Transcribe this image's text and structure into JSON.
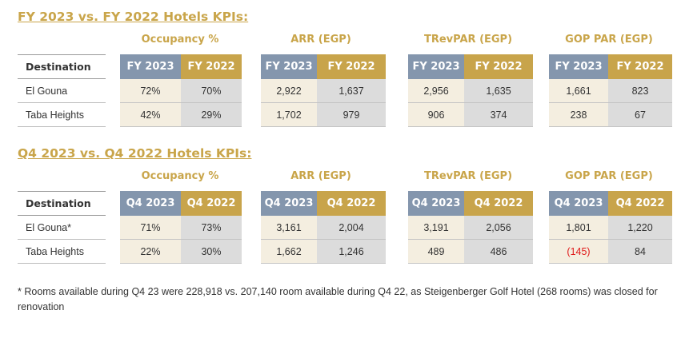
{
  "fy": {
    "title": "FY 2023 vs. FY 2022 Hotels KPIs:",
    "dest_header": "Destination",
    "metrics": [
      {
        "name": "Occupancy %",
        "cur": "FY 2023",
        "prev": "FY 2022",
        "rows": [
          [
            "72%",
            "70%"
          ],
          [
            "42%",
            "29%"
          ]
        ]
      },
      {
        "name": "ARR (EGP)",
        "cur": "FY 2023",
        "prev": "FY 2022",
        "rows": [
          [
            "2,922",
            "1,637"
          ],
          [
            "1,702",
            "979"
          ]
        ]
      },
      {
        "name": "TRevPAR (EGP)",
        "cur": "FY 2023",
        "prev": "FY 2022",
        "rows": [
          [
            "2,956",
            "1,635"
          ],
          [
            "906",
            "374"
          ]
        ]
      },
      {
        "name": "GOP PAR (EGP)",
        "cur": "FY 2023",
        "prev": "FY 2022",
        "rows": [
          [
            "1,661",
            "823"
          ],
          [
            "238",
            "67"
          ]
        ]
      }
    ],
    "destinations": [
      "El Gouna",
      "Taba Heights"
    ]
  },
  "q4": {
    "title": "Q4 2023 vs. Q4 2022 Hotels KPIs:",
    "dest_header": "Destination",
    "metrics": [
      {
        "name": "Occupancy %",
        "cur": "Q4 2023",
        "prev": "Q4 2022",
        "rows": [
          [
            "71%",
            "73%"
          ],
          [
            "22%",
            "30%"
          ]
        ]
      },
      {
        "name": "ARR (EGP)",
        "cur": "Q4 2023",
        "prev": "Q4 2022",
        "rows": [
          [
            "3,161",
            "2,004"
          ],
          [
            "1,662",
            "1,246"
          ]
        ]
      },
      {
        "name": "TRevPAR (EGP)",
        "cur": "Q4 2023",
        "prev": "Q4 2022",
        "rows": [
          [
            "3,191",
            "2,056"
          ],
          [
            "489",
            "486"
          ]
        ]
      },
      {
        "name": "GOP PAR (EGP)",
        "cur": "Q4 2023",
        "prev": "Q4 2022",
        "rows": [
          [
            "1,801",
            "1,220"
          ],
          [
            "(145)",
            "84"
          ]
        ]
      }
    ],
    "destinations": [
      "El Gouna*",
      "Taba Heights"
    ]
  },
  "footnote": "* Rooms available during Q4 23 were 228,918 vs. 207,140 room available during Q4 22, as Steigenberger Golf Hotel (268 rooms) was closed for renovation",
  "colors": {
    "gold": "#c8a44b",
    "slate": "#8496ad",
    "negative": "#e01919"
  }
}
